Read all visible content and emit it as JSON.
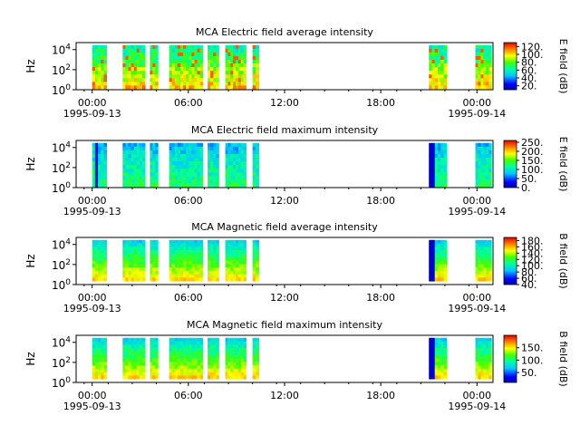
{
  "chart_data": [
    {
      "type": "heatmap",
      "title": "MCA  Electric field average intensity",
      "ylabel": "Hz",
      "ytick_labels": [
        [
          "10",
          "0"
        ],
        [
          "10",
          "2"
        ],
        [
          "10",
          "4"
        ]
      ],
      "y_exponents": [
        0,
        2,
        4
      ],
      "ylim_log10": [
        0,
        4.7
      ],
      "xtick_labels": [
        "00:00",
        "06:00",
        "12:00",
        "18:00",
        "00:00"
      ],
      "x_hours": [
        0,
        6,
        12,
        18,
        24
      ],
      "xlim_hours": [
        -1,
        25
      ],
      "date_labels": [
        "1995-09-13",
        "1995-09-14"
      ],
      "colorbar_label": "E field (dB)",
      "colorbar_ticks": [
        "20.",
        "40.",
        "60.",
        "80.",
        "100.",
        "120."
      ],
      "colorbar_range": [
        10,
        130
      ],
      "level": "high",
      "data_intervals_hours": [
        [
          0.0,
          0.9
        ],
        [
          1.9,
          3.3
        ],
        [
          3.6,
          4.1
        ],
        [
          4.8,
          6.9
        ],
        [
          7.2,
          7.9
        ],
        [
          8.3,
          9.6
        ],
        [
          10.0,
          10.4
        ],
        [
          21.0,
          22.1
        ],
        [
          23.9,
          24.9
        ]
      ]
    },
    {
      "type": "heatmap",
      "title": "MCA  Electric field maximum intensity",
      "ylabel": "Hz",
      "ytick_labels": [
        [
          "10",
          "0"
        ],
        [
          "10",
          "2"
        ],
        [
          "10",
          "4"
        ]
      ],
      "y_exponents": [
        0,
        2,
        4
      ],
      "ylim_log10": [
        0,
        4.7
      ],
      "xtick_labels": [
        "00:00",
        "06:00",
        "12:00",
        "18:00",
        "00:00"
      ],
      "x_hours": [
        0,
        6,
        12,
        18,
        24
      ],
      "xlim_hours": [
        -1,
        25
      ],
      "date_labels": [
        "1995-09-13",
        "1995-09-14"
      ],
      "colorbar_label": "E field (dB)",
      "colorbar_ticks": [
        "0.",
        "50.",
        "100.",
        "150.",
        "200.",
        "250."
      ],
      "colorbar_range": [
        0,
        260
      ],
      "level": "low",
      "data_intervals_hours": [
        [
          0.0,
          0.9
        ],
        [
          1.9,
          3.3
        ],
        [
          3.6,
          4.1
        ],
        [
          4.8,
          6.9
        ],
        [
          7.2,
          7.9
        ],
        [
          8.3,
          9.6
        ],
        [
          10.0,
          10.4
        ],
        [
          21.0,
          22.1
        ],
        [
          23.9,
          24.9
        ]
      ]
    },
    {
      "type": "heatmap",
      "title": "MCA  Magnetic field average intensity",
      "ylabel": "Hz",
      "ytick_labels": [
        [
          "10",
          "0"
        ],
        [
          "10",
          "2"
        ],
        [
          "10",
          "4"
        ]
      ],
      "y_exponents": [
        0,
        2,
        4
      ],
      "ylim_log10": [
        0,
        4.7
      ],
      "xtick_labels": [
        "00:00",
        "06:00",
        "12:00",
        "18:00",
        "00:00"
      ],
      "x_hours": [
        0,
        6,
        12,
        18,
        24
      ],
      "xlim_hours": [
        -1,
        25
      ],
      "date_labels": [
        "1995-09-13",
        "1995-09-14"
      ],
      "colorbar_label": "B field (dB)",
      "colorbar_ticks": [
        "40.",
        "60.",
        "80.",
        "100.",
        "120.",
        "140.",
        "160.",
        "180."
      ],
      "colorbar_range": [
        40,
        190
      ],
      "level": "mid",
      "data_intervals_hours": [
        [
          0.0,
          0.9
        ],
        [
          1.9,
          3.3
        ],
        [
          3.6,
          4.1
        ],
        [
          4.8,
          6.9
        ],
        [
          7.2,
          7.9
        ],
        [
          8.3,
          9.6
        ],
        [
          10.0,
          10.4
        ],
        [
          21.0,
          22.1
        ],
        [
          23.9,
          24.9
        ]
      ]
    },
    {
      "type": "heatmap",
      "title": "MCA  Magnetic field maximum intensity",
      "ylabel": "Hz",
      "ytick_labels": [
        [
          "10",
          "0"
        ],
        [
          "10",
          "2"
        ],
        [
          "10",
          "4"
        ]
      ],
      "y_exponents": [
        0,
        2,
        4
      ],
      "ylim_log10": [
        0,
        4.7
      ],
      "xtick_labels": [
        "00:00",
        "06:00",
        "12:00",
        "18:00",
        "00:00"
      ],
      "x_hours": [
        0,
        6,
        12,
        18,
        24
      ],
      "xlim_hours": [
        -1,
        25
      ],
      "date_labels": [
        "1995-09-13",
        "1995-09-14"
      ],
      "colorbar_label": "B field (dB)",
      "colorbar_ticks": [
        "50.",
        "100.",
        "150."
      ],
      "colorbar_range": [
        10,
        200
      ],
      "level": "mid",
      "data_intervals_hours": [
        [
          0.0,
          0.9
        ],
        [
          1.9,
          3.3
        ],
        [
          3.6,
          4.1
        ],
        [
          4.8,
          6.9
        ],
        [
          7.2,
          7.9
        ],
        [
          8.3,
          9.6
        ],
        [
          10.0,
          10.4
        ],
        [
          21.0,
          22.1
        ],
        [
          23.9,
          24.9
        ]
      ]
    }
  ]
}
